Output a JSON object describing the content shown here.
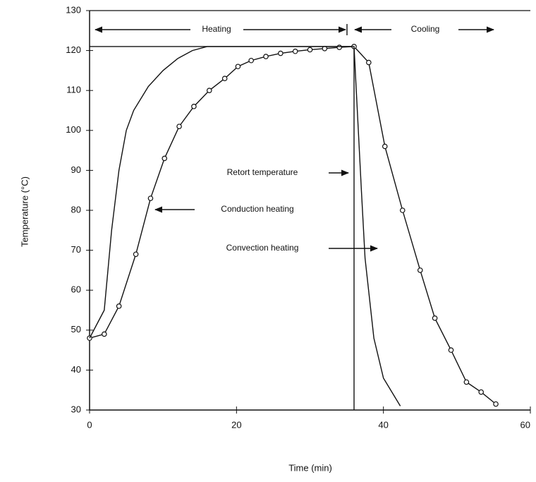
{
  "chart_data": {
    "type": "line",
    "x_label": "Time (min)",
    "y_label": "Temperature (°C)",
    "xlim": [
      0,
      60
    ],
    "ylim": [
      30,
      130
    ],
    "xticks": [
      0,
      20,
      40,
      60
    ],
    "yticks": [
      30,
      40,
      50,
      60,
      70,
      80,
      90,
      100,
      110,
      120,
      130
    ],
    "annotations": [
      "Heating",
      "Cooling"
    ],
    "series": [
      {
        "name": "Retort temperature",
        "color": "#111111",
        "markers": false,
        "x": [
          0,
          36,
          36
        ],
        "values": [
          121,
          121,
          30
        ]
      },
      {
        "name": "Conduction heating",
        "color": "#111111",
        "markers": true,
        "x": [
          0,
          2,
          4,
          6.3,
          8.3,
          10.2,
          12.2,
          14.2,
          16.3,
          18.4,
          20.2,
          22,
          24,
          26,
          28,
          30,
          32,
          34,
          36,
          38,
          40.2,
          42.6,
          45,
          47,
          49.2,
          51.3,
          53.3,
          55.3
        ],
        "values": [
          48,
          49,
          56,
          69,
          83,
          93,
          101,
          106,
          110,
          113,
          116,
          117.5,
          118.5,
          119.3,
          119.8,
          120.2,
          120.5,
          120.8,
          121,
          117,
          96,
          80,
          65,
          53,
          45,
          37,
          34.5,
          31.5
        ]
      },
      {
        "name": "Convection heating",
        "color": "#111111",
        "markers": false,
        "x": [
          0,
          2,
          3,
          4,
          5,
          6,
          8,
          10,
          12,
          14,
          16,
          36,
          37,
          37.5,
          38.7,
          40,
          42.3
        ],
        "values": [
          48,
          55,
          75,
          90,
          100,
          105,
          111,
          115,
          118,
          120,
          121,
          121,
          85,
          68,
          48,
          38,
          31
        ]
      }
    ]
  }
}
